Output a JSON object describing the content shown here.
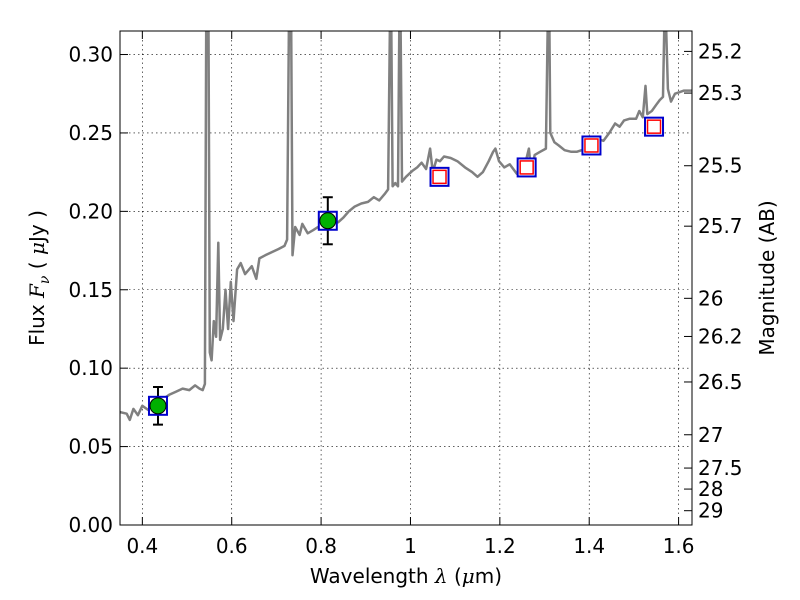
{
  "chart_data": {
    "type": "line+scatter",
    "title": "",
    "xlabel": "Wavelength  λ (μm)",
    "ylabel": "Flux  Fν  ( μJy )",
    "y2label": "Magnitude (AB)",
    "xlim": [
      0.35,
      1.63
    ],
    "ylim": [
      0.0,
      0.315
    ],
    "grid": true,
    "x_ticks": [
      {
        "value": 0.4,
        "label": "0.4"
      },
      {
        "value": 0.6,
        "label": "0.6"
      },
      {
        "value": 0.8,
        "label": "0.8"
      },
      {
        "value": 1.0,
        "label": "1"
      },
      {
        "value": 1.2,
        "label": "1.2"
      },
      {
        "value": 1.4,
        "label": "1.4"
      },
      {
        "value": 1.6,
        "label": "1.6"
      }
    ],
    "y_ticks": [
      {
        "value": 0.0,
        "label": "0.00"
      },
      {
        "value": 0.05,
        "label": "0.05"
      },
      {
        "value": 0.1,
        "label": "0.10"
      },
      {
        "value": 0.15,
        "label": "0.15"
      },
      {
        "value": 0.2,
        "label": "0.20"
      },
      {
        "value": 0.25,
        "label": "0.25"
      },
      {
        "value": 0.3,
        "label": "0.30"
      }
    ],
    "y2_ticks": [
      {
        "mag": 25.2,
        "label": "25.2"
      },
      {
        "mag": 25.3,
        "label": "25.3"
      },
      {
        "mag": 25.5,
        "label": "25.5"
      },
      {
        "mag": 25.7,
        "label": "25.7"
      },
      {
        "mag": 26,
        "label": "26"
      },
      {
        "mag": 26.2,
        "label": "26.2"
      },
      {
        "mag": 26.5,
        "label": "26.5"
      },
      {
        "mag": 27,
        "label": "27"
      },
      {
        "mag": 27.5,
        "label": "27.5"
      },
      {
        "mag": 28,
        "label": "28"
      },
      {
        "mag": 29,
        "label": "29"
      }
    ],
    "series": [
      {
        "name": "model-spectrum",
        "kind": "line",
        "color": "#808080",
        "points": [
          [
            0.35,
            0.072
          ],
          [
            0.365,
            0.071
          ],
          [
            0.372,
            0.067
          ],
          [
            0.38,
            0.074
          ],
          [
            0.39,
            0.07
          ],
          [
            0.4,
            0.076
          ],
          [
            0.415,
            0.073
          ],
          [
            0.43,
            0.078
          ],
          [
            0.445,
            0.08
          ],
          [
            0.46,
            0.083
          ],
          [
            0.475,
            0.085
          ],
          [
            0.49,
            0.087
          ],
          [
            0.505,
            0.086
          ],
          [
            0.518,
            0.089
          ],
          [
            0.528,
            0.087
          ],
          [
            0.535,
            0.086
          ],
          [
            0.54,
            0.09
          ],
          [
            0.543,
            0.318
          ],
          [
            0.548,
            0.318
          ],
          [
            0.551,
            0.11
          ],
          [
            0.555,
            0.105
          ],
          [
            0.56,
            0.13
          ],
          [
            0.565,
            0.12
          ],
          [
            0.57,
            0.18
          ],
          [
            0.574,
            0.118
          ],
          [
            0.58,
            0.125
          ],
          [
            0.586,
            0.15
          ],
          [
            0.592,
            0.125
          ],
          [
            0.598,
            0.155
          ],
          [
            0.604,
            0.13
          ],
          [
            0.612,
            0.163
          ],
          [
            0.62,
            0.167
          ],
          [
            0.63,
            0.16
          ],
          [
            0.645,
            0.165
          ],
          [
            0.655,
            0.157
          ],
          [
            0.662,
            0.17
          ],
          [
            0.675,
            0.172
          ],
          [
            0.69,
            0.174
          ],
          [
            0.705,
            0.176
          ],
          [
            0.718,
            0.178
          ],
          [
            0.724,
            0.182
          ],
          [
            0.728,
            0.318
          ],
          [
            0.733,
            0.318
          ],
          [
            0.736,
            0.172
          ],
          [
            0.742,
            0.19
          ],
          [
            0.752,
            0.185
          ],
          [
            0.758,
            0.192
          ],
          [
            0.77,
            0.186
          ],
          [
            0.782,
            0.188
          ],
          [
            0.793,
            0.19
          ],
          [
            0.81,
            0.191
          ],
          [
            0.825,
            0.194
          ],
          [
            0.838,
            0.193
          ],
          [
            0.85,
            0.196
          ],
          [
            0.862,
            0.2
          ],
          [
            0.875,
            0.203
          ],
          [
            0.89,
            0.205
          ],
          [
            0.905,
            0.206
          ],
          [
            0.918,
            0.209
          ],
          [
            0.93,
            0.207
          ],
          [
            0.942,
            0.211
          ],
          [
            0.95,
            0.214
          ],
          [
            0.954,
            0.318
          ],
          [
            0.957,
            0.318
          ],
          [
            0.96,
            0.216
          ],
          [
            0.966,
            0.218
          ],
          [
            0.972,
            0.216
          ],
          [
            0.975,
            0.318
          ],
          [
            0.978,
            0.318
          ],
          [
            0.981,
            0.219
          ],
          [
            0.99,
            0.222
          ],
          [
            1.005,
            0.226
          ],
          [
            1.015,
            0.228
          ],
          [
            1.025,
            0.231
          ],
          [
            1.035,
            0.227
          ],
          [
            1.044,
            0.24
          ],
          [
            1.05,
            0.225
          ],
          [
            1.058,
            0.233
          ],
          [
            1.066,
            0.232
          ],
          [
            1.075,
            0.235
          ],
          [
            1.09,
            0.234
          ],
          [
            1.105,
            0.232
          ],
          [
            1.122,
            0.228
          ],
          [
            1.138,
            0.225
          ],
          [
            1.15,
            0.222
          ],
          [
            1.162,
            0.225
          ],
          [
            1.175,
            0.232
          ],
          [
            1.185,
            0.238
          ],
          [
            1.19,
            0.24
          ],
          [
            1.198,
            0.232
          ],
          [
            1.21,
            0.228
          ],
          [
            1.222,
            0.23
          ],
          [
            1.238,
            0.224
          ],
          [
            1.25,
            0.229
          ],
          [
            1.258,
            0.232
          ],
          [
            1.265,
            0.24
          ],
          [
            1.27,
            0.225
          ],
          [
            1.278,
            0.236
          ],
          [
            1.29,
            0.238
          ],
          [
            1.303,
            0.24
          ],
          [
            1.307,
            0.318
          ],
          [
            1.311,
            0.318
          ],
          [
            1.313,
            0.25
          ],
          [
            1.322,
            0.244
          ],
          [
            1.332,
            0.242
          ],
          [
            1.345,
            0.239
          ],
          [
            1.36,
            0.238
          ],
          [
            1.372,
            0.238
          ],
          [
            1.383,
            0.239
          ],
          [
            1.395,
            0.241
          ],
          [
            1.41,
            0.244
          ],
          [
            1.42,
            0.246
          ],
          [
            1.432,
            0.245
          ],
          [
            1.445,
            0.25
          ],
          [
            1.458,
            0.256
          ],
          [
            1.468,
            0.254
          ],
          [
            1.478,
            0.258
          ],
          [
            1.49,
            0.259
          ],
          [
            1.505,
            0.259
          ],
          [
            1.512,
            0.264
          ],
          [
            1.52,
            0.26
          ],
          [
            1.526,
            0.28
          ],
          [
            1.53,
            0.262
          ],
          [
            1.54,
            0.264
          ],
          [
            1.55,
            0.268
          ],
          [
            1.558,
            0.271
          ],
          [
            1.565,
            0.273
          ],
          [
            1.568,
            0.318
          ],
          [
            1.572,
            0.318
          ],
          [
            1.576,
            0.278
          ],
          [
            1.583,
            0.27
          ],
          [
            1.592,
            0.275
          ],
          [
            1.602,
            0.276
          ],
          [
            1.612,
            0.277
          ],
          [
            1.63,
            0.277
          ]
        ]
      },
      {
        "name": "model-photometry",
        "kind": "open-square",
        "color": "#0000cc",
        "x": [
          0.435,
          0.815,
          1.065,
          1.26,
          1.405,
          1.545
        ],
        "y": [
          0.076,
          0.194,
          0.222,
          0.228,
          0.242,
          0.254
        ]
      },
      {
        "name": "observed-detections",
        "kind": "filled-circle-errorbar",
        "color": "#00b000",
        "x": [
          0.435,
          0.815
        ],
        "y": [
          0.076,
          0.194
        ],
        "yerr": [
          0.012,
          0.015
        ]
      },
      {
        "name": "observed-other",
        "kind": "open-square",
        "color": "#ff0000",
        "x": [
          1.065,
          1.26,
          1.405,
          1.545
        ],
        "y": [
          0.222,
          0.228,
          0.242,
          0.254
        ]
      }
    ]
  }
}
